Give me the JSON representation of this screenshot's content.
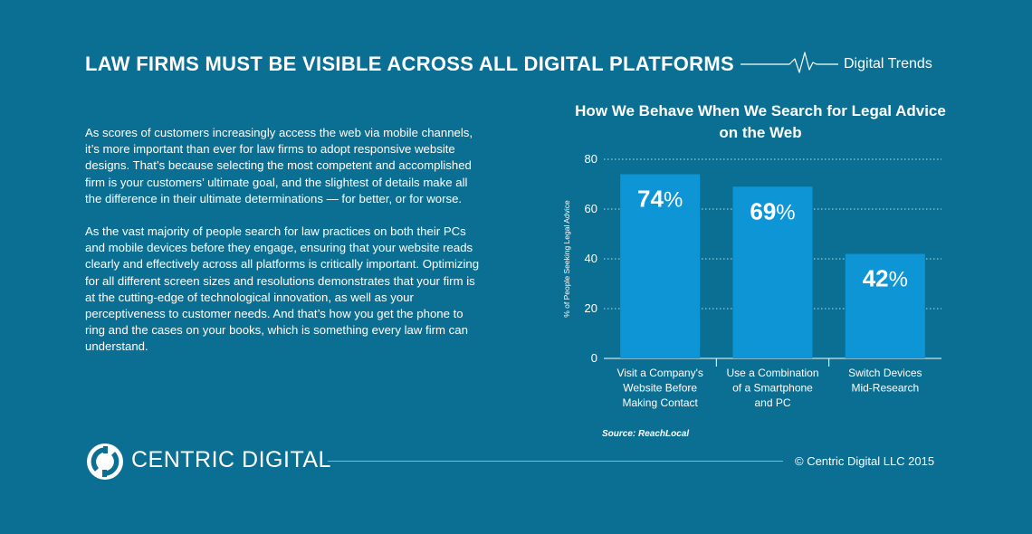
{
  "header": {
    "title": "LAW FIRMS MUST BE VISIBLE ACROSS ALL DIGITAL PLATFORMS",
    "tag": "Digital Trends",
    "icon": "heartbeat-line-icon"
  },
  "body": {
    "paragraphs": [
      "As scores of customers increasingly access the web via mobile channels, it’s more important than ever for law firms to adopt responsive website designs. That’s because selecting the most competent and accomplished firm is your customers’ ultimate goal, and the slightest of details make all the difference in their ultimate determinations — for better, or for worse.",
      "As the vast majority of people search for law practices on both their PCs and mobile devices before they engage, ensuring that your website reads clearly and effectively across all platforms is critically important. Optimizing for all different screen sizes and resolutions demonstrates that your firm is at the cutting-edge of technological innovation, as well as your perceptiveness to customer needs. And that’s how you get the phone to ring and the cases on your books, which is something every law firm can understand."
    ]
  },
  "chart_data": {
    "type": "bar",
    "title": "How We Behave When We Search for Legal Advice on the Web",
    "ylabel": "% of People Seeking Legal Advice",
    "xlabel": "",
    "ylim": [
      0,
      80
    ],
    "yticks": [
      0,
      20,
      40,
      60,
      80
    ],
    "grid": true,
    "categories": [
      [
        "Visit a Company's",
        "Website Before",
        "Making Contact"
      ],
      [
        "Use a Combination",
        "of a Smartphone",
        "and PC"
      ],
      [
        "Switch Devices",
        "Mid-Research"
      ]
    ],
    "values": [
      74,
      69,
      42
    ],
    "value_labels": [
      "74",
      "69",
      "42"
    ],
    "unit_symbol": "%",
    "bar_color": "#0d95d6",
    "source": "Source: ReachLocal"
  },
  "footer": {
    "brand": "CENTRIC DIGITAL",
    "logo_icon": "centric-digital-logo-icon",
    "copyright": "© Centric Digital LLC 2015"
  },
  "colors": {
    "background": "#0b6f93",
    "bar": "#0d95d6",
    "text": "#ffffff",
    "line": "#7fb9cf"
  }
}
